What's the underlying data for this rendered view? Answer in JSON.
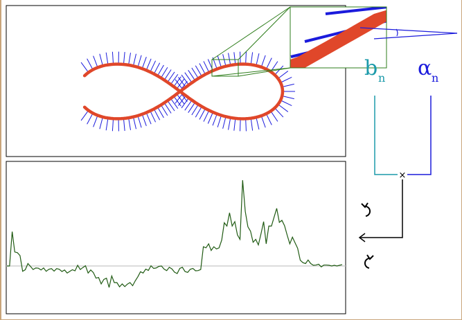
{
  "labels": {
    "b_main": "b",
    "b_sub": "n",
    "alpha_main": "α",
    "alpha_sub": "n",
    "multiply": "×"
  },
  "icons": {
    "undo": "undo-arrow-icon",
    "redo": "redo-arrow-icon"
  },
  "colors": {
    "curve": "#e0472a",
    "normals": "#1b1bdc",
    "b_label": "#1b9aaa",
    "alpha_label": "#1b1bdc",
    "zoom_frame": "#2e7d1b",
    "signal": "#1f5a12",
    "baseline": "#c8c8c8"
  },
  "chart_data": {
    "type": "line",
    "title": "",
    "xlabel": "",
    "ylabel": "",
    "baseline": 0,
    "ylim": [
      -2,
      4.5
    ],
    "series": [
      {
        "values": [
          0.0,
          0.0,
          1.55,
          0.63,
          0.6,
          0.47,
          -0.24,
          -0.17,
          0.11,
          -0.02,
          -0.16,
          -0.09,
          -0.1,
          -0.18,
          -0.09,
          -0.24,
          -0.15,
          -0.12,
          -0.23,
          -0.12,
          -0.15,
          -0.25,
          -0.18,
          -0.32,
          -0.24,
          -0.17,
          -0.22,
          0.03,
          -0.16,
          -0.07,
          0.01,
          -0.32,
          -0.18,
          -0.3,
          -0.55,
          -0.52,
          -0.81,
          -0.61,
          -0.55,
          -0.97,
          -0.45,
          -0.75,
          -0.75,
          -0.94,
          -0.81,
          -0.93,
          -0.82,
          -0.75,
          -0.89,
          -0.67,
          -0.48,
          -0.26,
          -0.32,
          -0.14,
          -0.2,
          0.01,
          -0.11,
          -0.09,
          -0.02,
          0.0,
          -0.14,
          -0.21,
          -0.06,
          -0.13,
          -0.28,
          -0.34,
          -0.11,
          -0.06,
          -0.25,
          -0.29,
          -0.15,
          -0.11,
          -0.22,
          -0.21,
          -0.16,
          0.87,
          0.82,
          1.0,
          0.7,
          0.87,
          0.77,
          0.82,
          1.17,
          1.95,
          1.8,
          2.4,
          1.8,
          2.0,
          1.4,
          1.2,
          3.87,
          2.46,
          1.77,
          1.57,
          1.07,
          1.2,
          0.95,
          1.45,
          2.0,
          1.0,
          1.8,
          1.8,
          2.2,
          2.6,
          1.97,
          2.06,
          1.82,
          1.39,
          1.0,
          1.3,
          1.05,
          0.8,
          0.26,
          0.15,
          0.11,
          0.27,
          0.11,
          0.03,
          0.04,
          0.08,
          -0.04,
          0.04,
          0.04,
          0.03,
          0.0,
          0.03,
          0.0,
          0.03,
          0.06
        ]
      }
    ]
  }
}
